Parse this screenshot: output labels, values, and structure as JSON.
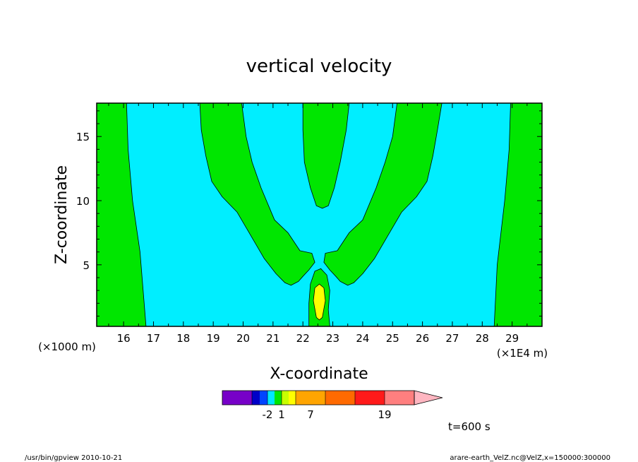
{
  "chart_data": {
    "type": "contour",
    "title": "vertical velocity",
    "xlabel": "X-coordinate",
    "ylabel": "Z-coordinate",
    "x_unit": "(×1E4 m)",
    "y_unit": "(×1000 m)",
    "xlim": [
      15.1,
      30.0
    ],
    "ylim": [
      0.2,
      17.6
    ],
    "x_ticks": [
      "16",
      "17",
      "18",
      "19",
      "20",
      "21",
      "22",
      "23",
      "24",
      "25",
      "26",
      "27",
      "28",
      "29"
    ],
    "y_ticks": [
      "5",
      "10",
      "15"
    ],
    "regions": [
      {
        "name": "left-green-band",
        "color": "#00e600",
        "outline": [
          [
            15.1,
            17.6
          ],
          [
            16.1,
            17.6
          ],
          [
            16.15,
            14
          ],
          [
            16.3,
            10
          ],
          [
            16.55,
            6
          ],
          [
            16.75,
            0.2
          ],
          [
            15.1,
            0.2
          ]
        ]
      },
      {
        "name": "right-green-band",
        "color": "#00e600",
        "outline": [
          [
            30.0,
            17.6
          ],
          [
            28.95,
            17.6
          ],
          [
            28.9,
            14
          ],
          [
            28.75,
            10
          ],
          [
            28.5,
            5
          ],
          [
            28.4,
            0.2
          ],
          [
            30.0,
            0.2
          ]
        ]
      },
      {
        "name": "left-plume",
        "color": "#00e600",
        "outline": [
          [
            18.55,
            17.6
          ],
          [
            19.95,
            17.6
          ],
          [
            20.1,
            15
          ],
          [
            20.3,
            13
          ],
          [
            20.6,
            11
          ],
          [
            21.05,
            8.5
          ],
          [
            21.5,
            7.5
          ],
          [
            21.9,
            6.1
          ],
          [
            22.3,
            5.9
          ],
          [
            22.4,
            5.2
          ],
          [
            22.2,
            4.6
          ],
          [
            22.0,
            4.1
          ],
          [
            21.85,
            3.7
          ],
          [
            21.6,
            3.4
          ],
          [
            21.4,
            3.6
          ],
          [
            21.1,
            4.3
          ],
          [
            20.7,
            5.5
          ],
          [
            20.2,
            7.5
          ],
          [
            19.8,
            9.1
          ],
          [
            19.3,
            10.3
          ],
          [
            18.95,
            11.5
          ],
          [
            18.75,
            13.5
          ],
          [
            18.6,
            15.5
          ]
        ]
      },
      {
        "name": "right-plume",
        "color": "#00e600",
        "outline": [
          [
            26.65,
            17.6
          ],
          [
            25.15,
            17.6
          ],
          [
            25.0,
            15
          ],
          [
            24.75,
            13
          ],
          [
            24.45,
            11
          ],
          [
            24.0,
            8.5
          ],
          [
            23.55,
            7.5
          ],
          [
            23.15,
            6.1
          ],
          [
            22.75,
            5.9
          ],
          [
            22.7,
            5.2
          ],
          [
            22.9,
            4.6
          ],
          [
            23.1,
            4.1
          ],
          [
            23.25,
            3.7
          ],
          [
            23.5,
            3.4
          ],
          [
            23.7,
            3.6
          ],
          [
            24.0,
            4.3
          ],
          [
            24.4,
            5.5
          ],
          [
            24.9,
            7.5
          ],
          [
            25.3,
            9.1
          ],
          [
            25.8,
            10.3
          ],
          [
            26.15,
            11.5
          ],
          [
            26.35,
            13.5
          ],
          [
            26.5,
            15.5
          ]
        ]
      },
      {
        "name": "center-plume",
        "color": "#00e600",
        "outline": [
          [
            22.0,
            17.6
          ],
          [
            23.55,
            17.6
          ],
          [
            23.45,
            15.5
          ],
          [
            23.25,
            13
          ],
          [
            23.05,
            11
          ],
          [
            22.85,
            9.6
          ],
          [
            22.65,
            9.4
          ],
          [
            22.45,
            9.6
          ],
          [
            22.25,
            11
          ],
          [
            22.05,
            13
          ],
          [
            22.0,
            15.5
          ]
        ]
      },
      {
        "name": "bottom-center-plume",
        "color": "#00e600",
        "outline": [
          [
            22.2,
            0.2
          ],
          [
            22.9,
            0.2
          ],
          [
            22.85,
            1.5
          ],
          [
            22.9,
            3
          ],
          [
            22.8,
            4.2
          ],
          [
            22.6,
            4.7
          ],
          [
            22.4,
            4.5
          ],
          [
            22.25,
            3.5
          ],
          [
            22.2,
            2
          ]
        ]
      },
      {
        "name": "updraft-core",
        "color": "#ffff00",
        "outline": [
          [
            22.55,
            3.5
          ],
          [
            22.7,
            3.2
          ],
          [
            22.75,
            2.2
          ],
          [
            22.65,
            0.9
          ],
          [
            22.55,
            0.7
          ],
          [
            22.45,
            0.9
          ],
          [
            22.35,
            2.2
          ],
          [
            22.4,
            3.2
          ]
        ]
      }
    ],
    "background_color": "#00eeff",
    "colorbar": {
      "colors": [
        "#7700c8",
        "#7700c8",
        "#0000c8",
        "#0044ff",
        "#00e6ff",
        "#00e600",
        "#c8ff00",
        "#ffff00",
        "#ffa500",
        "#ffa500",
        "#ff6a00",
        "#ff6a00",
        "#ff1a1a",
        "#ff1a1a",
        "#ff7f7f",
        "#ff7f7f",
        "#ffb6c1"
      ],
      "labels": [
        "-2",
        "1",
        "7",
        "19"
      ],
      "extend": "max"
    }
  },
  "annotations": {
    "time": "t=600 s",
    "program": "/usr/bin/gpview  2010-10-21",
    "file": "arare-earth_VelZ.nc@VelZ,x=150000:300000"
  }
}
